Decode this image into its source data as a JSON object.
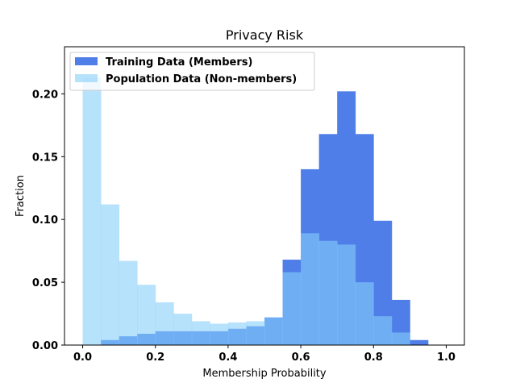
{
  "chart_data": {
    "type": "histogram",
    "title": "Privacy Risk",
    "xlabel": "Membership Probability",
    "ylabel": "Fraction",
    "xlim": [
      -0.05,
      1.05
    ],
    "ylim": [
      0,
      0.2375
    ],
    "xticks": [
      "0.0",
      "0.2",
      "0.4",
      "0.6",
      "0.8",
      "1.0"
    ],
    "yticks": [
      "0.00",
      "0.05",
      "0.10",
      "0.15",
      "0.20"
    ],
    "bin_edges": [
      0.0,
      0.05,
      0.1,
      0.15,
      0.2,
      0.25,
      0.3,
      0.35,
      0.4,
      0.45,
      0.5,
      0.55,
      0.6,
      0.65,
      0.7,
      0.75,
      0.8,
      0.85,
      0.9,
      0.95,
      1.0
    ],
    "series": [
      {
        "name": "Training Data (Members)",
        "color": "#4f7ee8",
        "values": [
          0.0,
          0.004,
          0.007,
          0.009,
          0.011,
          0.011,
          0.011,
          0.011,
          0.013,
          0.015,
          0.022,
          0.068,
          0.14,
          0.168,
          0.202,
          0.168,
          0.099,
          0.036,
          0.004,
          0.0
        ]
      },
      {
        "name": "Population Data (Non-members)",
        "color": "#87cefa",
        "alpha": 0.6,
        "values": [
          0.213,
          0.112,
          0.067,
          0.048,
          0.034,
          0.025,
          0.019,
          0.017,
          0.018,
          0.019,
          0.022,
          0.058,
          0.089,
          0.083,
          0.08,
          0.05,
          0.023,
          0.01,
          0.0,
          0.0
        ]
      }
    ],
    "legend_position": "top-left"
  }
}
